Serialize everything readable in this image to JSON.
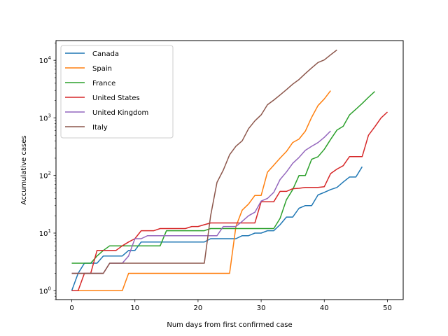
{
  "chart_data": {
    "type": "line",
    "xlabel": "Num days from first confirmed case",
    "ylabel": "Accumulative cases",
    "xlim": [
      -2.5,
      52.5
    ],
    "ylim": [
      0.7,
      22000
    ],
    "yscale": "log",
    "grid": false,
    "legend_position": "top-left",
    "x_ticks": [
      "0",
      "10",
      "20",
      "30",
      "40",
      "50"
    ],
    "y_ticks": [
      {
        "value": 1,
        "base": "10",
        "exp": "0"
      },
      {
        "value": 10,
        "base": "10",
        "exp": "1"
      },
      {
        "value": 100,
        "base": "10",
        "exp": "2"
      },
      {
        "value": 1000,
        "base": "10",
        "exp": "3"
      },
      {
        "value": 10000,
        "base": "10",
        "exp": "4"
      }
    ],
    "series": [
      {
        "name": "Canada",
        "color": "#1f77b4",
        "x": [
          0,
          1,
          2,
          3,
          4,
          5,
          6,
          7,
          8,
          9,
          10,
          11,
          12,
          13,
          14,
          15,
          16,
          17,
          18,
          19,
          20,
          21,
          22,
          23,
          24,
          25,
          26,
          27,
          28,
          29,
          30,
          31,
          32,
          33,
          34,
          35,
          36,
          37,
          38,
          39,
          40,
          41,
          42,
          43,
          44,
          45,
          46
        ],
        "y": [
          1,
          2,
          3,
          3,
          3,
          4,
          4,
          4,
          4,
          5,
          5,
          7,
          7,
          7,
          7,
          7,
          7,
          7,
          7,
          7,
          7,
          7,
          8,
          8,
          8,
          8,
          8,
          9,
          9,
          10,
          10,
          11,
          11,
          14,
          19,
          19,
          27,
          30,
          30,
          46,
          51,
          57,
          62,
          77,
          94,
          94,
          142
        ]
      },
      {
        "name": "Spain",
        "color": "#ff7f0e",
        "x": [
          0,
          1,
          2,
          3,
          4,
          5,
          6,
          7,
          8,
          9,
          10,
          11,
          12,
          13,
          14,
          15,
          16,
          17,
          18,
          19,
          20,
          21,
          22,
          23,
          24,
          25,
          26,
          27,
          28,
          29,
          30,
          31,
          32,
          33,
          34,
          35,
          36,
          37,
          38,
          39,
          40,
          41
        ],
        "y": [
          1,
          1,
          1,
          1,
          1,
          1,
          1,
          1,
          1,
          2,
          2,
          2,
          2,
          2,
          2,
          2,
          2,
          2,
          2,
          2,
          2,
          2,
          2,
          2,
          2,
          2,
          13,
          25,
          32,
          45,
          45,
          114,
          151,
          200,
          261,
          374,
          430,
          589,
          1024,
          1639,
          2140,
          2965
        ]
      },
      {
        "name": "France",
        "color": "#2ca02c",
        "x": [
          0,
          1,
          2,
          3,
          4,
          5,
          6,
          7,
          8,
          9,
          10,
          11,
          12,
          13,
          14,
          15,
          16,
          17,
          18,
          19,
          20,
          21,
          22,
          23,
          24,
          25,
          26,
          27,
          28,
          29,
          30,
          31,
          32,
          33,
          34,
          35,
          36,
          37,
          38,
          39,
          40,
          41,
          42,
          43,
          44,
          45,
          46,
          47,
          48
        ],
        "y": [
          3,
          3,
          3,
          3,
          4,
          5,
          6,
          6,
          6,
          6,
          6,
          6,
          6,
          6,
          6,
          11,
          11,
          11,
          11,
          11,
          11,
          11,
          12,
          12,
          12,
          12,
          12,
          12,
          12,
          12,
          12,
          12,
          12,
          18,
          38,
          57,
          100,
          100,
          191,
          212,
          285,
          423,
          613,
          716,
          1126,
          1412,
          1784,
          2281,
          2876
        ]
      },
      {
        "name": "United States",
        "color": "#d62728",
        "x": [
          0,
          1,
          2,
          3,
          4,
          5,
          6,
          7,
          8,
          9,
          10,
          11,
          12,
          13,
          14,
          15,
          16,
          17,
          18,
          19,
          20,
          21,
          22,
          23,
          24,
          25,
          26,
          27,
          28,
          29,
          30,
          31,
          32,
          33,
          34,
          35,
          36,
          37,
          38,
          39,
          40,
          41,
          42,
          43,
          44,
          45,
          46,
          47,
          48,
          49,
          50
        ],
        "y": [
          1,
          1,
          2,
          2,
          5,
          5,
          5,
          5,
          6,
          7,
          8,
          11,
          11,
          11,
          12,
          12,
          12,
          12,
          12,
          13,
          13,
          14,
          15,
          15,
          15,
          15,
          15,
          15,
          15,
          15,
          35,
          35,
          35,
          53,
          53,
          59,
          60,
          62,
          62,
          62,
          64,
          108,
          129,
          148,
          213,
          213,
          213,
          500,
          700,
          1000,
          1265
        ]
      },
      {
        "name": "United Kingdom",
        "color": "#9467bd",
        "x": [
          0,
          1,
          2,
          3,
          4,
          5,
          6,
          7,
          8,
          9,
          10,
          11,
          12,
          13,
          14,
          15,
          16,
          17,
          18,
          19,
          20,
          21,
          22,
          23,
          24,
          25,
          26,
          27,
          28,
          29,
          30,
          31,
          32,
          33,
          34,
          35,
          36,
          37,
          38,
          39,
          40,
          41
        ],
        "y": [
          2,
          2,
          2,
          2,
          2,
          2,
          3,
          3,
          3,
          4,
          8,
          8,
          9,
          9,
          9,
          9,
          9,
          9,
          9,
          9,
          9,
          9,
          9,
          9,
          13,
          13,
          13,
          16,
          20,
          23,
          36,
          40,
          51,
          85,
          115,
          163,
          206,
          273,
          321,
          373,
          460,
          594
        ]
      },
      {
        "name": "Italy",
        "color": "#8c564b",
        "x": [
          0,
          1,
          2,
          3,
          4,
          5,
          6,
          7,
          8,
          9,
          10,
          11,
          12,
          13,
          14,
          15,
          16,
          17,
          18,
          19,
          20,
          21,
          22,
          23,
          24,
          25,
          26,
          27,
          28,
          29,
          30,
          31,
          32,
          33,
          34,
          35,
          36,
          37,
          38,
          39,
          40,
          41,
          42
        ],
        "y": [
          2,
          2,
          2,
          2,
          2,
          2,
          3,
          3,
          3,
          3,
          3,
          3,
          3,
          3,
          3,
          3,
          3,
          3,
          3,
          3,
          3,
          3,
          20,
          76,
          124,
          229,
          322,
          400,
          650,
          888,
          1128,
          1694,
          2036,
          2502,
          3089,
          3858,
          4636,
          5883,
          7375,
          9172,
          10149,
          12462,
          15113
        ]
      }
    ]
  }
}
